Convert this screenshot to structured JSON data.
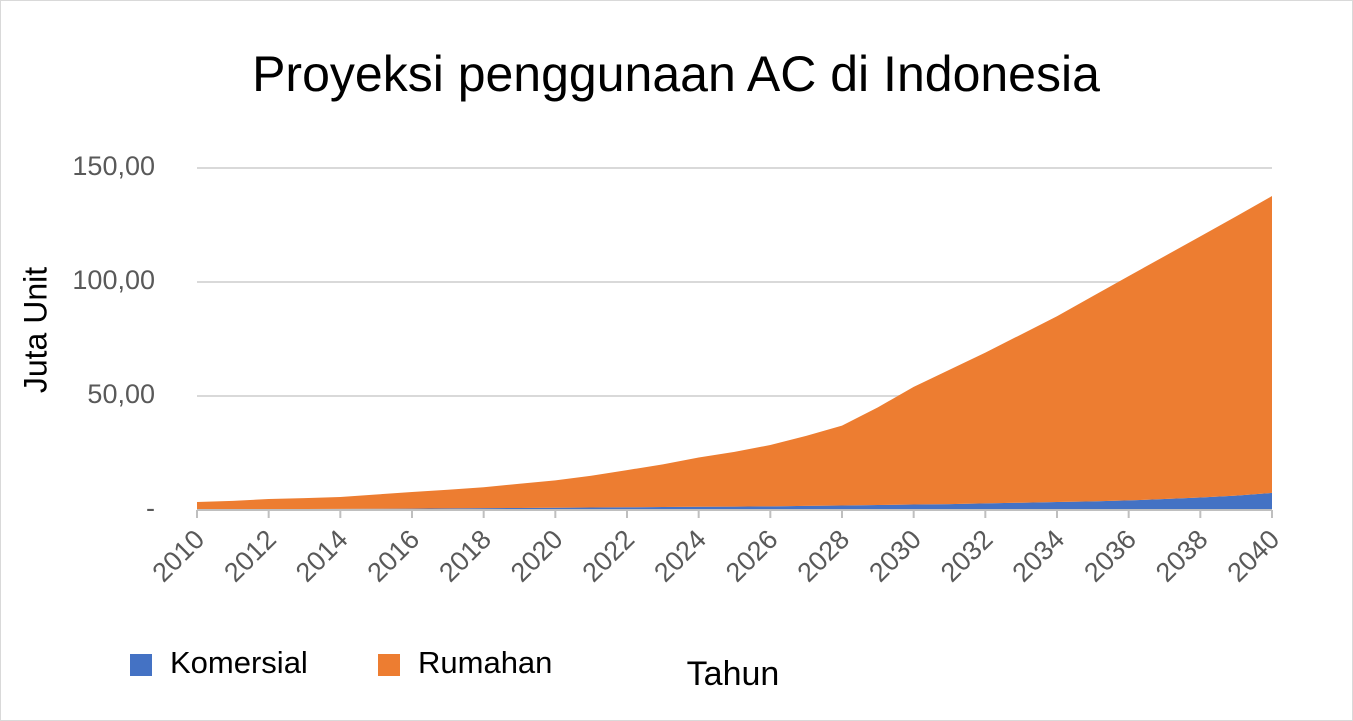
{
  "chart_data": {
    "type": "stacked-area",
    "title": "Proyeksi penggunaan AC di Indonesia",
    "x_label": "Tahun",
    "y_label": "Juta Unit",
    "x": [
      2010,
      2011,
      2012,
      2013,
      2014,
      2015,
      2016,
      2017,
      2018,
      2019,
      2020,
      2021,
      2022,
      2023,
      2024,
      2025,
      2026,
      2027,
      2028,
      2029,
      2030,
      2031,
      2032,
      2033,
      2034,
      2035,
      2036,
      2037,
      2038,
      2039,
      2040
    ],
    "xlim": [
      2010,
      2040
    ],
    "xticks": [
      2010,
      2012,
      2014,
      2016,
      2018,
      2020,
      2022,
      2024,
      2026,
      2028,
      2030,
      2032,
      2034,
      2036,
      2038,
      2040
    ],
    "ylim": [
      0,
      150
    ],
    "yticks": [
      {
        "value": 0,
        "label": "-"
      },
      {
        "value": 50,
        "label": "50,00"
      },
      {
        "value": 100,
        "label": "100,00"
      },
      {
        "value": 150,
        "label": "150,00"
      }
    ],
    "grid": true,
    "legend": "bottom-left",
    "series": [
      {
        "name": "Komersial",
        "color": "#4472c4",
        "values": [
          0.3,
          0.35,
          0.4,
          0.45,
          0.5,
          0.55,
          0.6,
          0.7,
          0.8,
          0.9,
          1.0,
          1.1,
          1.2,
          1.3,
          1.4,
          1.5,
          1.6,
          1.8,
          2.0,
          2.2,
          2.4,
          2.6,
          2.9,
          3.2,
          3.5,
          3.8,
          4.2,
          4.8,
          5.5,
          6.3,
          7.5
        ]
      },
      {
        "name": "Rumahan",
        "color": "#ed7d31",
        "values": [
          3.2,
          3.65,
          4.4,
          4.75,
          5.2,
          6.25,
          7.3,
          8.2,
          9.2,
          10.6,
          12.0,
          13.9,
          16.3,
          18.7,
          21.6,
          24.0,
          26.9,
          30.7,
          35.0,
          42.8,
          51.6,
          58.9,
          66.1,
          73.8,
          81.5,
          90.0,
          98.4,
          106.5,
          114.5,
          122.5,
          130.2
        ]
      }
    ]
  }
}
